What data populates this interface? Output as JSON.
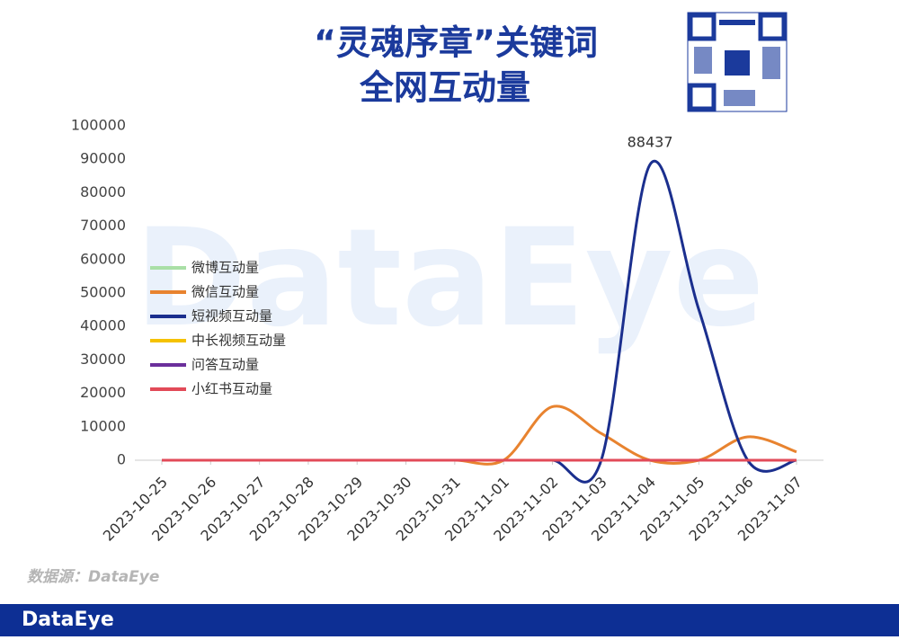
{
  "title": [
    "“灵魂序章”关键词",
    "全网互动量"
  ],
  "watermark": "DataEye",
  "source": "数据源：DataEye",
  "footer": "DataEye",
  "chart_data": {
    "type": "line",
    "categories": [
      "2023-10-25",
      "2023-10-26",
      "2023-10-27",
      "2023-10-28",
      "2023-10-29",
      "2023-10-30",
      "2023-10-31",
      "2023-11-01",
      "2023-11-02",
      "2023-11-03",
      "2023-11-04",
      "2023-11-05",
      "2023-11-06",
      "2023-11-07"
    ],
    "series": [
      {
        "name": "微博互动量",
        "color": "#a9dfa6",
        "values": [
          0,
          0,
          0,
          0,
          0,
          0,
          0,
          0,
          0,
          0,
          0,
          0,
          0,
          0
        ]
      },
      {
        "name": "微信互动量",
        "color": "#e8832f",
        "values": [
          0,
          0,
          0,
          0,
          0,
          0,
          0,
          0,
          16000,
          8000,
          0,
          0,
          7000,
          2500
        ]
      },
      {
        "name": "短视频互动量",
        "color": "#1b2f8e",
        "values": [
          0,
          0,
          0,
          0,
          0,
          0,
          0,
          0,
          0,
          0,
          88437,
          45000,
          0,
          0
        ]
      },
      {
        "name": "中长视频互动量",
        "color": "#f5c200",
        "values": [
          0,
          0,
          0,
          0,
          0,
          0,
          0,
          0,
          0,
          0,
          0,
          0,
          0,
          0
        ]
      },
      {
        "name": "问答互动量",
        "color": "#6b2f9b",
        "values": [
          0,
          0,
          0,
          0,
          0,
          0,
          0,
          0,
          0,
          0,
          0,
          0,
          0,
          0
        ]
      },
      {
        "name": "小红书互动量",
        "color": "#e24a58",
        "values": [
          0,
          0,
          0,
          0,
          0,
          0,
          0,
          0,
          0,
          0,
          0,
          0,
          0,
          0
        ]
      }
    ],
    "ylim": [
      0,
      100000
    ],
    "yticks": [
      0,
      10000,
      20000,
      30000,
      40000,
      50000,
      60000,
      70000,
      80000,
      90000,
      100000
    ],
    "smooth": true
  }
}
